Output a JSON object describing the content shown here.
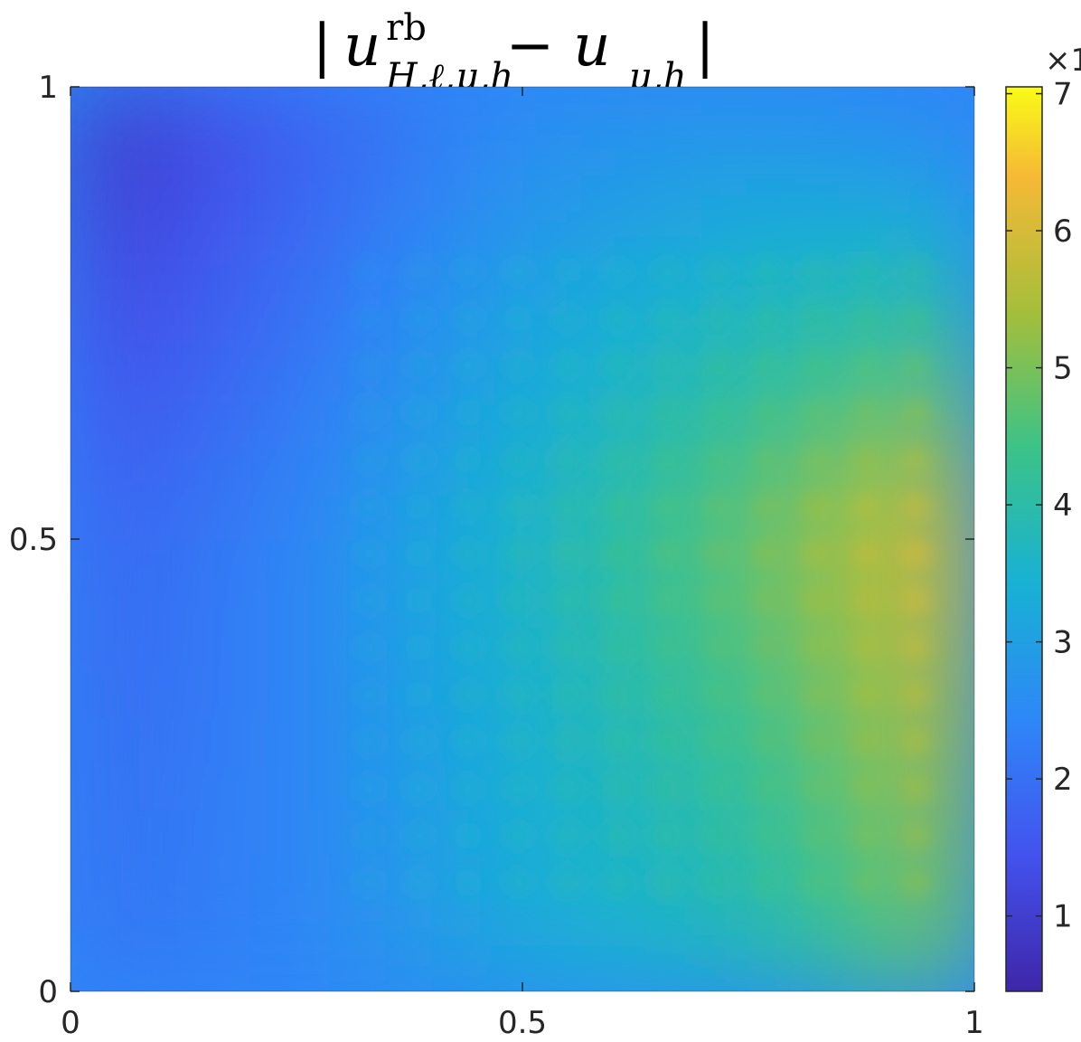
{
  "chart_data": {
    "type": "heatmap",
    "title": "|u^{rb}_{H,ℓ,μ,h} − u_{μ,h}|",
    "title_parts": {
      "open_bar": "|",
      "base": "u",
      "superscript": "rb",
      "subscript": "H,ℓ,μ,h",
      "minus": "−",
      "base2": "u",
      "subscript2": "μ,h",
      "close_bar": "|"
    },
    "xlabel": "",
    "ylabel": "",
    "xlim": [
      0,
      1
    ],
    "ylim": [
      0,
      1
    ],
    "x_ticks": [
      0,
      0.5,
      1
    ],
    "y_ticks": [
      0,
      0.5,
      1
    ],
    "x_tick_labels": [
      "0",
      "0.5",
      "1"
    ],
    "y_tick_labels": [
      "0",
      "0.5",
      "1"
    ],
    "colormap": "parula",
    "colorbar": {
      "range": [
        0.45,
        7.05
      ],
      "ticks": [
        1,
        2,
        3,
        4,
        5,
        6,
        7
      ],
      "tick_labels": [
        "1",
        "2",
        "3",
        "4",
        "5",
        "6",
        "7"
      ],
      "exponent_label": "×1"
    },
    "grid": false,
    "value_grid_y_top_to_bottom": [
      0,
      0.5,
      1
    ],
    "value_grid_x_left_to_right": [
      0,
      0.25,
      0.5,
      0.75,
      1
    ],
    "value_grid": [
      [
        0.6,
        1.6,
        2.5,
        2.6,
        2.1
      ],
      [
        1.7,
        2.4,
        3.6,
        4.8,
        6.2
      ],
      [
        2.1,
        2.4,
        3.2,
        3.6,
        4.9
      ]
    ]
  }
}
